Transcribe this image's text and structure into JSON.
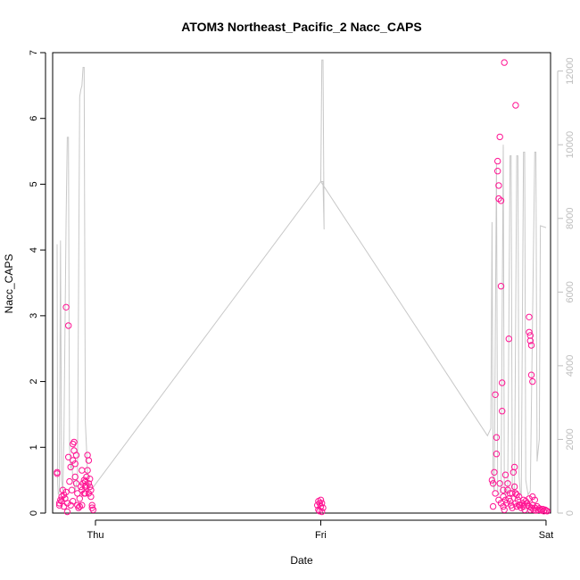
{
  "chart_data": {
    "type": "scatter",
    "title": "ATOM3 Northeast_Pacific_2 Nacc_CAPS",
    "xlabel": "Date",
    "ylabel": "Nacc_CAPS",
    "xlim": [
      -0.19,
      2.02
    ],
    "ylim": [
      0,
      7
    ],
    "y_ticks": [
      0,
      1,
      2,
      3,
      4,
      5,
      6,
      7
    ],
    "x_ticks": [
      {
        "value": 0,
        "label": "Thu"
      },
      {
        "value": 1,
        "label": "Fri"
      },
      {
        "value": 2,
        "label": "Sat"
      }
    ],
    "secondary_axis": {
      "side": "right",
      "ylim": [
        0,
        12500
      ],
      "ticks": [
        0,
        2000,
        4000,
        6000,
        8000,
        10000,
        12000
      ],
      "color": "#bdbdbd"
    },
    "colors": {
      "points": "#ff1493",
      "line": "#c8c8c8",
      "axis": "#000000"
    },
    "series": [
      {
        "kind": "points",
        "axis": "left",
        "color": "#ff1493",
        "points": [
          [
            -0.17,
            0.6
          ],
          [
            -0.17,
            0.62
          ],
          [
            -0.16,
            0.15
          ],
          [
            -0.16,
            0.12
          ],
          [
            -0.155,
            0.2
          ],
          [
            -0.15,
            0.25
          ],
          [
            -0.15,
            0.18
          ],
          [
            -0.145,
            0.35
          ],
          [
            -0.14,
            0.28
          ],
          [
            -0.14,
            0.1
          ],
          [
            -0.135,
            0.22
          ],
          [
            -0.13,
            3.13
          ],
          [
            -0.13,
            0.32
          ],
          [
            -0.125,
            0.15
          ],
          [
            -0.125,
            0.02
          ],
          [
            -0.12,
            0.85
          ],
          [
            -0.12,
            2.85
          ],
          [
            -0.115,
            0.48
          ],
          [
            -0.11,
            0.12
          ],
          [
            -0.11,
            0.7
          ],
          [
            -0.105,
            0.35
          ],
          [
            -0.1,
            0.8
          ],
          [
            -0.1,
            1.05
          ],
          [
            -0.1,
            0.18
          ],
          [
            -0.095,
            1.08
          ],
          [
            -0.095,
            0.95
          ],
          [
            -0.09,
            0.75
          ],
          [
            -0.09,
            0.55
          ],
          [
            -0.085,
            0.88
          ],
          [
            -0.085,
            0.45
          ],
          [
            -0.08,
            0.3
          ],
          [
            -0.08,
            0.12
          ],
          [
            -0.075,
            0.08
          ],
          [
            -0.07,
            0.22
          ],
          [
            -0.07,
            0.1
          ],
          [
            -0.065,
            0.4
          ],
          [
            -0.06,
            0.35
          ],
          [
            -0.06,
            0.12
          ],
          [
            -0.055,
            0.45
          ],
          [
            -0.05,
            0.3
          ],
          [
            -0.05,
            0.5
          ],
          [
            -0.045,
            0.4
          ],
          [
            -0.045,
            0.48
          ],
          [
            -0.04,
            0.42
          ],
          [
            -0.04,
            0.55
          ],
          [
            -0.035,
            0.65
          ],
          [
            -0.035,
            0.88
          ],
          [
            -0.03,
            0.8
          ],
          [
            -0.03,
            0.45
          ],
          [
            -0.03,
            0.3
          ],
          [
            -0.025,
            0.4
          ],
          [
            -0.025,
            0.52
          ],
          [
            -0.02,
            0.35
          ],
          [
            -0.02,
            0.25
          ],
          [
            -0.015,
            0.08
          ],
          [
            -0.015,
            0.12
          ],
          [
            -0.01,
            0.05
          ],
          [
            -0.06,
            0.65
          ],
          [
            -0.045,
            0.3
          ],
          [
            0.985,
            0.12
          ],
          [
            0.99,
            0.18
          ],
          [
            0.99,
            0.05
          ],
          [
            0.995,
            0.15
          ],
          [
            0.995,
            0.03
          ],
          [
            1.0,
            0.2
          ],
          [
            1.0,
            0.1
          ],
          [
            1.005,
            0.15
          ],
          [
            1.005,
            0.02
          ],
          [
            1.01,
            0.08
          ],
          [
            1.76,
            0.5
          ],
          [
            1.765,
            0.45
          ],
          [
            1.765,
            0.1
          ],
          [
            1.77,
            0.62
          ],
          [
            1.775,
            1.8
          ],
          [
            1.775,
            0.3
          ],
          [
            1.78,
            1.15
          ],
          [
            1.78,
            0.9
          ],
          [
            1.785,
            5.35
          ],
          [
            1.785,
            5.2
          ],
          [
            1.79,
            4.98
          ],
          [
            1.79,
            4.78
          ],
          [
            1.795,
            5.72
          ],
          [
            1.795,
            0.45
          ],
          [
            1.8,
            4.75
          ],
          [
            1.8,
            3.45
          ],
          [
            1.805,
            1.98
          ],
          [
            1.805,
            1.55
          ],
          [
            1.81,
            0.35
          ],
          [
            1.81,
            0.1
          ],
          [
            1.815,
            0.05
          ],
          [
            1.82,
            0.58
          ],
          [
            1.825,
            0.15
          ],
          [
            1.83,
            0.45
          ],
          [
            1.83,
            0.35
          ],
          [
            1.835,
            2.65
          ],
          [
            1.835,
            0.22
          ],
          [
            1.84,
            0.18
          ],
          [
            1.845,
            0.12
          ],
          [
            1.85,
            0.08
          ],
          [
            1.85,
            0.3
          ],
          [
            1.855,
            0.62
          ],
          [
            1.86,
            0.7
          ],
          [
            1.86,
            0.4
          ],
          [
            1.865,
            0.3
          ],
          [
            1.865,
            0.15
          ],
          [
            1.87,
            0.1
          ],
          [
            1.875,
            0.2
          ],
          [
            1.88,
            0.25
          ],
          [
            1.885,
            0.12
          ],
          [
            1.89,
            0.08
          ],
          [
            1.895,
            0.15
          ],
          [
            1.9,
            0.1
          ],
          [
            1.905,
            0.05
          ],
          [
            1.91,
            0.18
          ],
          [
            1.92,
            0.12
          ],
          [
            1.925,
            0.1
          ],
          [
            1.93,
            0.05
          ],
          [
            1.935,
            0.08
          ],
          [
            1.94,
            0.12
          ],
          [
            1.945,
            0.05
          ],
          [
            1.95,
            0.08
          ],
          [
            1.955,
            0.04
          ],
          [
            1.96,
            0.1
          ],
          [
            1.965,
            0.05
          ],
          [
            1.97,
            0.07
          ],
          [
            1.975,
            0.05
          ],
          [
            1.98,
            0.04
          ],
          [
            1.985,
            0.06
          ],
          [
            1.99,
            0.03
          ],
          [
            1.995,
            0.05
          ],
          [
            2.0,
            0.04
          ],
          [
            2.005,
            0.03
          ],
          [
            1.815,
            6.85
          ],
          [
            1.865,
            6.2
          ],
          [
            1.925,
            2.98
          ],
          [
            1.925,
            2.75
          ],
          [
            1.93,
            2.7
          ],
          [
            1.93,
            2.62
          ],
          [
            1.935,
            2.55
          ],
          [
            1.935,
            2.1
          ],
          [
            1.94,
            2.0
          ],
          [
            1.94,
            0.25
          ],
          [
            1.95,
            0.2
          ],
          [
            1.79,
            0.2
          ],
          [
            1.8,
            0.15
          ],
          [
            1.81,
            0.25
          ],
          [
            1.82,
            0.2
          ],
          [
            1.84,
            0.3
          ],
          [
            1.87,
            0.28
          ],
          [
            1.88,
            0.12
          ],
          [
            1.9,
            0.2
          ],
          [
            1.915,
            0.15
          ],
          [
            1.925,
            0.22
          ]
        ]
      },
      {
        "kind": "line",
        "axis": "right",
        "color": "#c8c8c8",
        "points": [
          [
            -0.17,
            7300
          ],
          [
            -0.168,
            800
          ],
          [
            -0.165,
            500
          ],
          [
            -0.16,
            600
          ],
          [
            -0.155,
            7400
          ],
          [
            -0.15,
            900
          ],
          [
            -0.145,
            600
          ],
          [
            -0.14,
            2000
          ],
          [
            -0.13,
            8000
          ],
          [
            -0.125,
            10200
          ],
          [
            -0.12,
            10200
          ],
          [
            -0.115,
            1800
          ],
          [
            -0.11,
            1200
          ],
          [
            -0.105,
            1400
          ],
          [
            -0.1,
            900
          ],
          [
            -0.095,
            800
          ],
          [
            -0.09,
            600
          ],
          [
            -0.08,
            900
          ],
          [
            -0.07,
            11300
          ],
          [
            -0.065,
            11500
          ],
          [
            -0.06,
            11600
          ],
          [
            -0.055,
            12100
          ],
          [
            -0.05,
            12100
          ],
          [
            -0.045,
            2500
          ],
          [
            -0.04,
            1800
          ],
          [
            -0.035,
            1000
          ],
          [
            -0.03,
            700
          ],
          [
            -0.02,
            700
          ],
          [
            -0.01,
            700
          ],
          [
            1.0,
            9000
          ],
          [
            1.005,
            12300
          ],
          [
            1.01,
            12300
          ],
          [
            1.015,
            7700
          ],
          [
            1.01,
            9000
          ],
          [
            1.0,
            9000
          ],
          [
            1.74,
            2100
          ],
          [
            1.755,
            2300
          ],
          [
            1.76,
            7900
          ],
          [
            1.765,
            800
          ],
          [
            1.77,
            600
          ],
          [
            1.78,
            9500
          ],
          [
            1.785,
            600
          ],
          [
            1.79,
            500
          ],
          [
            1.8,
            600
          ],
          [
            1.81,
            10000
          ],
          [
            1.815,
            600
          ],
          [
            1.82,
            500
          ],
          [
            1.83,
            600
          ],
          [
            1.84,
            9700
          ],
          [
            1.845,
            9700
          ],
          [
            1.85,
            800
          ],
          [
            1.855,
            600
          ],
          [
            1.86,
            600
          ],
          [
            1.87,
            9700
          ],
          [
            1.875,
            9700
          ],
          [
            1.88,
            1000
          ],
          [
            1.885,
            600
          ],
          [
            1.89,
            500
          ],
          [
            1.9,
            9800
          ],
          [
            1.905,
            9800
          ],
          [
            1.91,
            900
          ],
          [
            1.92,
            500
          ],
          [
            1.93,
            600
          ],
          [
            1.945,
            7600
          ],
          [
            1.95,
            9800
          ],
          [
            1.955,
            9800
          ],
          [
            1.96,
            1400
          ],
          [
            1.965,
            1700
          ],
          [
            1.97,
            2000
          ],
          [
            1.975,
            7800
          ],
          [
            2.0,
            7750
          ]
        ]
      }
    ]
  }
}
